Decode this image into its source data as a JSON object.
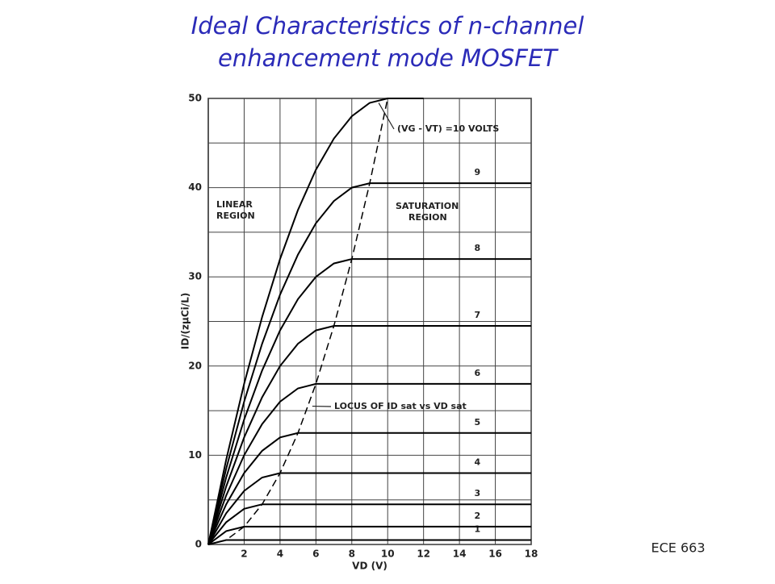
{
  "chart_data": {
    "type": "line",
    "title": [
      "Ideal Characteristics of n-channel",
      "enhancement mode MOSFET"
    ],
    "x_label": "VD (V)",
    "y_label": "ID/(zμCi/L)",
    "x": [
      0,
      1,
      2,
      3,
      4,
      5,
      6,
      7,
      8,
      9,
      10,
      11,
      12,
      13,
      14,
      15,
      16,
      17,
      18
    ],
    "xlim": [
      0,
      18
    ],
    "xticks": [
      2,
      4,
      6,
      8,
      10,
      12,
      14,
      16,
      18
    ],
    "ylim": [
      0,
      50
    ],
    "yticks": [
      0,
      10,
      20,
      30,
      40,
      50
    ],
    "ygrid": [
      0,
      5,
      10,
      15,
      20,
      25,
      30,
      35,
      40,
      45,
      50
    ],
    "grid": true,
    "series": [
      {
        "name": "1",
        "color": "#000000",
        "values": [
          0,
          0.5,
          0.5,
          0.5,
          0.5,
          0.5,
          0.5,
          0.5,
          0.5,
          0.5,
          0.5,
          0.5,
          0.5,
          0.5,
          0.5,
          0.5,
          0.5,
          0.5,
          0.5
        ]
      },
      {
        "name": "2",
        "color": "#000000",
        "values": [
          0,
          1.5,
          2,
          2,
          2,
          2,
          2,
          2,
          2,
          2,
          2,
          2,
          2,
          2,
          2,
          2,
          2,
          2,
          2
        ]
      },
      {
        "name": "3",
        "color": "#000000",
        "values": [
          0,
          2.5,
          4,
          4.5,
          4.5,
          4.5,
          4.5,
          4.5,
          4.5,
          4.5,
          4.5,
          4.5,
          4.5,
          4.5,
          4.5,
          4.5,
          4.5,
          4.5,
          4.5
        ]
      },
      {
        "name": "4",
        "color": "#000000",
        "values": [
          0,
          3.5,
          6,
          7.5,
          8,
          8,
          8,
          8,
          8,
          8,
          8,
          8,
          8,
          8,
          8,
          8,
          8,
          8,
          8
        ]
      },
      {
        "name": "5",
        "color": "#000000",
        "values": [
          0,
          4.5,
          8,
          10.5,
          12,
          12.5,
          12.5,
          12.5,
          12.5,
          12.5,
          12.5,
          12.5,
          12.5,
          12.5,
          12.5,
          12.5,
          12.5,
          12.5,
          12.5
        ]
      },
      {
        "name": "6",
        "color": "#000000",
        "values": [
          0,
          5.5,
          10,
          13.5,
          16,
          17.5,
          18,
          18,
          18,
          18,
          18,
          18,
          18,
          18,
          18,
          18,
          18,
          18,
          18
        ]
      },
      {
        "name": "7",
        "color": "#000000",
        "values": [
          0,
          6.5,
          12,
          16.5,
          20,
          22.5,
          24,
          24.5,
          24.5,
          24.5,
          24.5,
          24.5,
          24.5,
          24.5,
          24.5,
          24.5,
          24.5,
          24.5,
          24.5
        ]
      },
      {
        "name": "8",
        "color": "#000000",
        "values": [
          0,
          7.5,
          14,
          19.5,
          24,
          27.5,
          30,
          31.5,
          32,
          32,
          32,
          32,
          32,
          32,
          32,
          32,
          32,
          32,
          32
        ]
      },
      {
        "name": "9",
        "color": "#000000",
        "values": [
          0,
          8.5,
          16,
          22.5,
          28,
          32.5,
          36,
          38.5,
          40,
          40.5,
          40.5,
          40.5,
          40.5,
          40.5,
          40.5,
          40.5,
          40.5,
          40.5,
          40.5
        ]
      },
      {
        "name": "(VG - VT) =10 VOLTS",
        "color": "#000000",
        "values": [
          0,
          9.5,
          18,
          25.5,
          32,
          37.5,
          42,
          45.5,
          48,
          49.5,
          50,
          50,
          50,
          null,
          null,
          null,
          null,
          null,
          null
        ]
      },
      {
        "name": "LOCUS OF ID sat vs VD sat",
        "color": "#000000",
        "dashed": true,
        "values": [
          0,
          0.5,
          2,
          4.5,
          8,
          12.5,
          18,
          24.5,
          32,
          40.5,
          50,
          null,
          null,
          null,
          null,
          null,
          null,
          null,
          null
        ]
      }
    ],
    "annotations": [
      "LINEAR",
      "REGION",
      "SATURATION",
      "REGION"
    ]
  },
  "footer": "ECE 663"
}
